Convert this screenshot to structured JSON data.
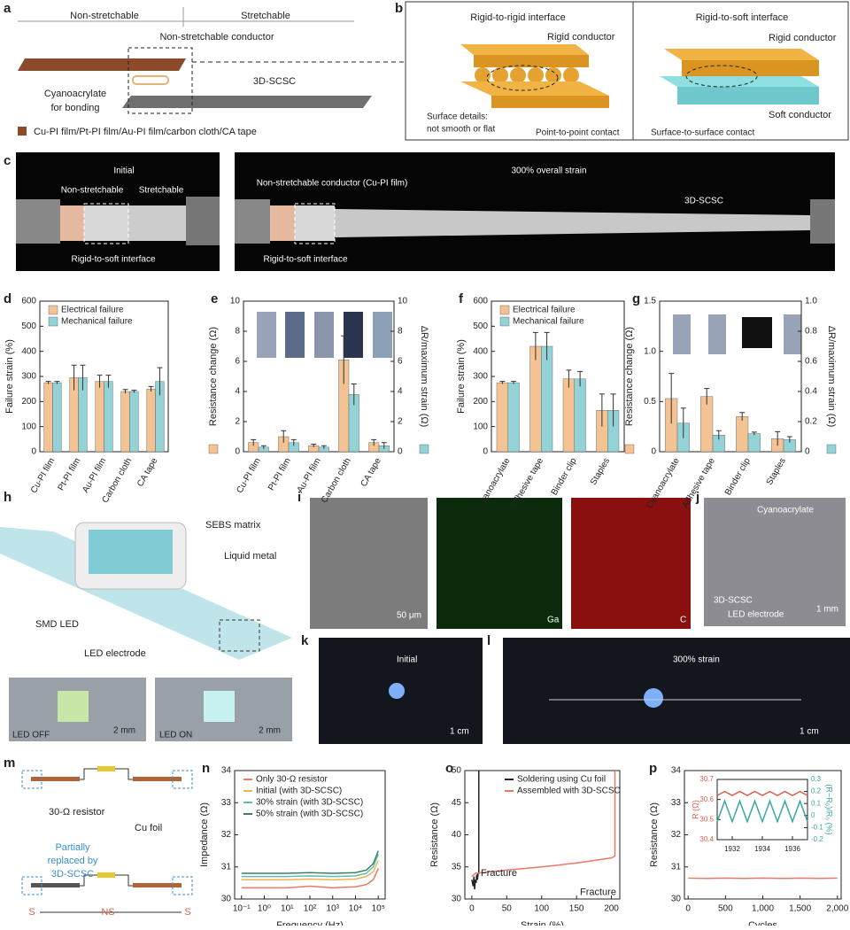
{
  "panels": {
    "a": {
      "letter": "a",
      "left": "Non-stretchable",
      "right": "Stretchable",
      "conductor": "Non-stretchable conductor",
      "bond": [
        "Cyanoacrylate",
        "for bonding"
      ],
      "scsc": "3D-SCSC",
      "legend": "Cu-PI film/Pt-PI film/Au-PI film/carbon cloth/CA tape"
    },
    "b": {
      "letter": "b",
      "title_left": "Rigid-to-rigid interface",
      "title_right": "Rigid-to-soft interface",
      "rigid_left": "Rigid conductor",
      "surface": [
        "Surface details:",
        "not smooth or flat"
      ],
      "point": "Point-to-point contact",
      "rigid_right": "Rigid conductor",
      "soft": "Soft conductor",
      "surface_contact": "Surface-to-surface contact"
    },
    "c": {
      "letter": "c",
      "initial": "Initial",
      "nonstretch": "Non-stretchable",
      "stretch": "Stretchable",
      "interface_left": "Rigid-to-soft interface",
      "strain": "300% overall strain",
      "conductor": "Non-stretchable conductor (Cu-PI film)",
      "scsc": "3D-SCSC",
      "interface_right": "Rigid-to-soft interface"
    },
    "h": {
      "letter": "h",
      "sebs": "SEBS matrix",
      "lm": "Liquid metal",
      "led": "SMD LED",
      "electrode": "LED electrode",
      "off": "LED OFF",
      "scale_off": "2 mm",
      "on": "LED ON",
      "scale_on": "2 mm"
    },
    "i": {
      "letter": "i",
      "scale": "50 μm",
      "ga": "Ga",
      "c": "C"
    },
    "j": {
      "letter": "j",
      "ca": "Cyanoacrylate",
      "scsc": "3D-SCSC",
      "electrode": "LED electrode",
      "scale": "1 mm"
    },
    "k": {
      "letter": "k",
      "label": "Initial",
      "scale": "1 cm"
    },
    "l": {
      "letter": "l",
      "label": "300% strain",
      "scale": "1 cm"
    },
    "m": {
      "letter": "m",
      "resistor": "30-Ω resistor",
      "foil": "Cu foil",
      "replaced": [
        "Partially",
        "replaced by",
        "3D-SCSC"
      ],
      "s_left": "S",
      "ns": "NS",
      "s_right": "S"
    }
  },
  "chart_data": [
    {
      "type": "bar",
      "panel": "d",
      "ylabel": "Failure strain (%)",
      "categories": [
        "Cu-PI film",
        "Pt-PI film",
        "Au-PI film",
        "Carbon cloth",
        "CA tape"
      ],
      "ylim": [
        0,
        600
      ],
      "yticks": [
        0,
        100,
        200,
        300,
        400,
        500,
        600
      ],
      "legend": "upper left",
      "series": [
        {
          "name": "Electrical failure",
          "color": "#f4c394",
          "values": [
            275,
            295,
            280,
            240,
            250
          ],
          "errors": [
            5,
            50,
            25,
            8,
            10
          ]
        },
        {
          "name": "Mechanical failure",
          "color": "#93d3d8",
          "values": [
            275,
            295,
            280,
            240,
            280
          ],
          "errors": [
            5,
            50,
            25,
            5,
            55
          ]
        }
      ]
    },
    {
      "type": "bar",
      "panel": "e",
      "ylabel": "Resistance change (Ω)",
      "y2label": "ΔR/maximum strain (Ω)",
      "categories": [
        "Cu-PI film",
        "Pt-PI film",
        "Au-PI film",
        "Carbon cloth",
        "CA tape"
      ],
      "ylim": [
        0,
        10
      ],
      "yticks": [
        0,
        2,
        4,
        6,
        8,
        10
      ],
      "y2lim": [
        0,
        10
      ],
      "y2ticks": [
        0,
        2,
        4,
        6,
        8,
        10
      ],
      "series": [
        {
          "color": "#f4c394",
          "values": [
            0.6,
            1.0,
            0.4,
            6.1,
            0.6
          ],
          "errors": [
            0.2,
            0.4,
            0.1,
            1.6,
            0.2
          ]
        },
        {
          "color": "#93d3d8",
          "axis": "y2",
          "values": [
            0.3,
            0.6,
            0.3,
            3.8,
            0.4
          ],
          "errors": [
            0.1,
            0.2,
            0.1,
            0.7,
            0.2
          ]
        }
      ]
    },
    {
      "type": "bar",
      "panel": "f",
      "ylabel": "Failure strain (%)",
      "categories": [
        "Cyanoacrylate",
        "Adhesive tape",
        "Binder clip",
        "Staples"
      ],
      "ylim": [
        0,
        600
      ],
      "yticks": [
        0,
        100,
        200,
        300,
        400,
        500,
        600
      ],
      "legend": "upper left",
      "series": [
        {
          "name": "Electrical failure",
          "color": "#f4c394",
          "values": [
            275,
            420,
            290,
            165
          ],
          "errors": [
            5,
            55,
            35,
            65
          ]
        },
        {
          "name": "Mechanical failure",
          "color": "#93d3d8",
          "values": [
            275,
            420,
            290,
            165
          ],
          "errors": [
            5,
            55,
            30,
            65
          ]
        }
      ]
    },
    {
      "type": "bar",
      "panel": "g",
      "ylabel": "Resistance change (Ω)",
      "y2label": "ΔR/maximum strain (Ω)",
      "categories": [
        "Cyanoacrylate",
        "Adhesive tape",
        "Binder clip",
        "Staples"
      ],
      "ylim": [
        0,
        1.5
      ],
      "yticks": [
        0,
        0.5,
        {
          "value": 1,
          "label": "1.0"
        },
        1.5
      ],
      "y2lim": [
        0,
        1
      ],
      "y2ticks": [
        0,
        0.2,
        0.4,
        0.6,
        0.8,
        {
          "value": 1,
          "label": "1.0"
        }
      ],
      "series": [
        {
          "color": "#f4c394",
          "values": [
            0.53,
            0.55,
            0.35,
            0.13
          ],
          "errors": [
            0.25,
            0.08,
            0.04,
            0.07
          ]
        },
        {
          "color": "#93d3d8",
          "axis": "y2",
          "values": [
            0.19,
            0.11,
            0.12,
            0.08
          ],
          "errors": [
            0.1,
            0.03,
            0.01,
            0.02
          ]
        }
      ]
    },
    {
      "type": "line",
      "panel": "n",
      "ylabel": "Impedance (Ω)",
      "xlabel": "Frequency (Hz)",
      "xscale": "log",
      "legend": "upper left",
      "x": [
        0.1,
        1,
        10,
        100,
        1000,
        10000,
        30000,
        60000,
        100000
      ],
      "xlim": [
        0.05,
        200000
      ],
      "xticks": [
        {
          "value": 0.1,
          "label": "10⁻¹"
        },
        {
          "value": 1,
          "label": "10⁰"
        },
        {
          "value": 10,
          "label": "10¹"
        },
        {
          "value": 100,
          "label": "10²"
        },
        {
          "value": 1000,
          "label": "10³"
        },
        {
          "value": 10000,
          "label": "10⁴"
        },
        {
          "value": 100000,
          "label": "10⁵"
        }
      ],
      "ylim": [
        30,
        34
      ],
      "yticks": [
        30,
        31,
        32,
        33,
        34
      ],
      "series": [
        {
          "name": "Only 30-Ω resistor",
          "color": "#e8786a",
          "values": [
            30.35,
            30.35,
            30.35,
            30.4,
            30.35,
            30.38,
            30.45,
            30.6,
            30.95
          ]
        },
        {
          "name": "Initial (with 3D-SCSC)",
          "color": "#f0b44c",
          "values": [
            30.6,
            30.6,
            30.6,
            30.62,
            30.6,
            30.62,
            30.7,
            30.85,
            31.2
          ]
        },
        {
          "name": "30% strain (with 3D-SCSC)",
          "color": "#5bbcb8",
          "values": [
            30.7,
            30.7,
            30.7,
            30.72,
            30.7,
            30.72,
            30.8,
            31.0,
            31.4
          ]
        },
        {
          "name": "50% strain (with 3D-SCSC)",
          "color": "#3f7f5f",
          "values": [
            30.8,
            30.8,
            30.8,
            30.82,
            30.8,
            30.82,
            30.9,
            31.1,
            31.5
          ]
        }
      ]
    },
    {
      "type": "line",
      "panel": "o",
      "ylabel": "Resistance (Ω)",
      "xlabel": "Strain (%)",
      "legend": "upper right",
      "annotations": [
        "Fracture",
        "Fracture"
      ],
      "xlim": [
        -10,
        212
      ],
      "xticks": [
        0,
        50,
        100,
        150,
        200
      ],
      "ylim": [
        30,
        50
      ],
      "yticks": [
        30,
        35,
        40,
        45,
        50
      ],
      "series": [
        {
          "name": "Soldering using Cu foil",
          "color": "#222222",
          "x": [
            0,
            2,
            3,
            4,
            5,
            6,
            7,
            8,
            9,
            10,
            10
          ],
          "values": [
            33,
            32,
            33.5,
            31.5,
            33,
            32.5,
            33.8,
            33,
            34,
            34,
            50
          ]
        },
        {
          "name": "Assembled with 3D-SCSC",
          "color": "#e8786a",
          "x": [
            0,
            5,
            50,
            100,
            150,
            175,
            200,
            205,
            205
          ],
          "values": [
            33.5,
            34,
            34.5,
            35,
            35.6,
            36,
            36.4,
            36.7,
            50
          ]
        }
      ]
    },
    {
      "type": "line",
      "panel": "p",
      "ylabel": "Resistance (Ω)",
      "xlabel": "Cycles",
      "xlim": [
        -50,
        2050
      ],
      "xticks": [
        0,
        500,
        {
          "value": 1000,
          "label": "1,000"
        },
        {
          "value": 1500,
          "label": "1,500"
        },
        {
          "value": 2000,
          "label": "2,000"
        }
      ],
      "ylim": [
        30,
        34
      ],
      "yticks": [
        30,
        31,
        32,
        33,
        34
      ],
      "x": [
        0,
        250,
        500,
        750,
        1000,
        1250,
        1500,
        1750,
        2000
      ],
      "series": [
        {
          "color": "#e8786a",
          "values": [
            30.65,
            30.64,
            30.65,
            30.64,
            30.65,
            30.64,
            30.65,
            30.64,
            30.65
          ]
        }
      ],
      "inset": {
        "type": "line",
        "ylabel": "R (Ω)",
        "y2label": "(R−R₀)/R₀ (%)",
        "colored_axes": true,
        "xlim": [
          1931,
          1937
        ],
        "xticks": [
          1932,
          1934,
          1936
        ],
        "ylim": [
          30.4,
          30.7
        ],
        "yticks": [
          30.4,
          30.5,
          30.6,
          30.7
        ],
        "y2lim": [
          -0.2,
          0.3
        ],
        "y2ticks": [
          -0.2,
          -0.1,
          0,
          0.1,
          0.2,
          0.3
        ],
        "x": [
          1931,
          1931.5,
          1932,
          1932.5,
          1933,
          1933.5,
          1934,
          1934.5,
          1935,
          1935.5,
          1936,
          1936.5,
          1937
        ],
        "series": [
          {
            "color": "#d9604f",
            "values": [
              30.62,
              30.64,
              30.62,
              30.64,
              30.62,
              30.64,
              30.62,
              30.64,
              30.62,
              30.64,
              30.62,
              30.64,
              30.62
            ]
          },
          {
            "color": "#3aa8a0",
            "axis": "y2",
            "values": [
              -0.05,
              0.12,
              -0.05,
              0.12,
              -0.05,
              0.12,
              -0.05,
              0.12,
              -0.05,
              0.12,
              -0.05,
              0.12,
              -0.05
            ]
          }
        ]
      }
    }
  ]
}
